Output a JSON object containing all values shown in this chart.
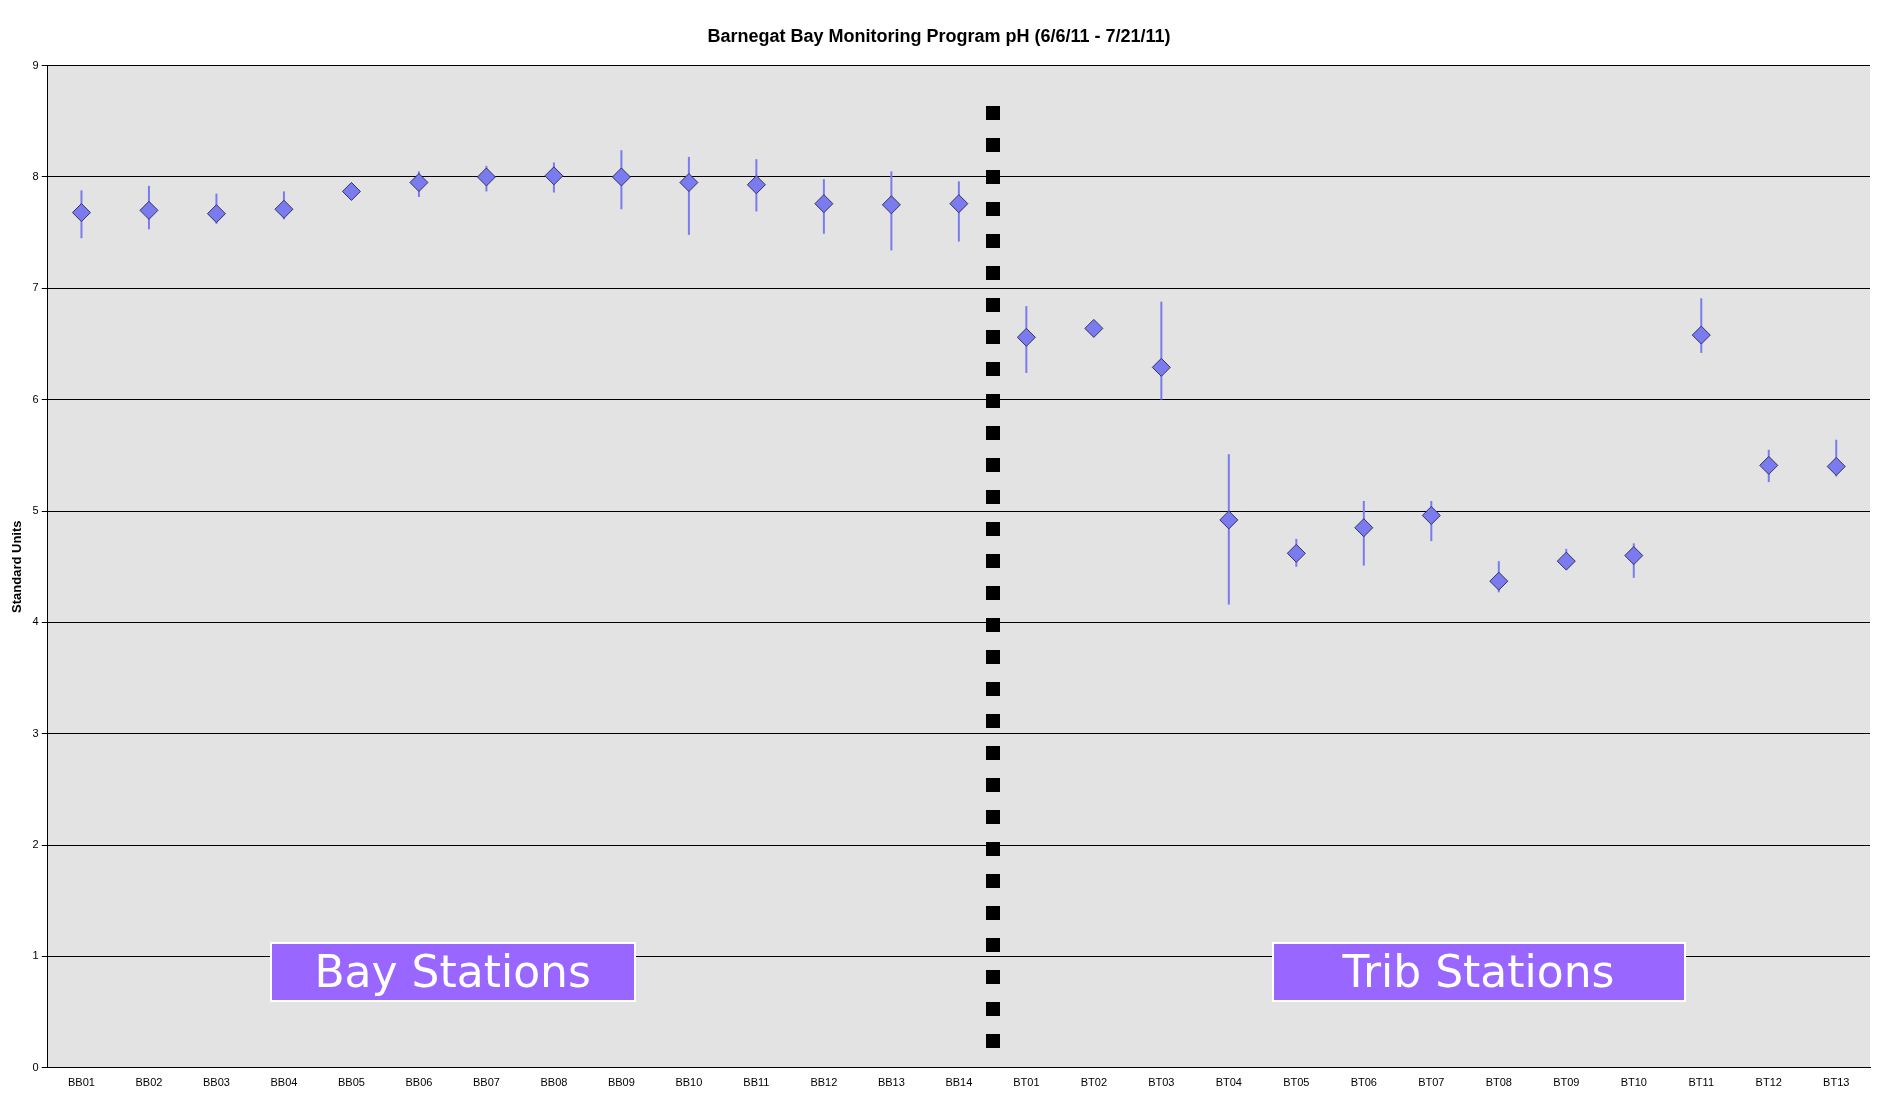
{
  "chart_data": {
    "type": "scatter",
    "title": "Barnegat Bay Monitoring Program pH (6/6/11 - 7/21/11)",
    "ylabel": "Standard Units",
    "categories": [
      "BB01",
      "BB02",
      "BB03",
      "BB04",
      "BB05",
      "BB06",
      "BB07",
      "BB08",
      "BB09",
      "BB10",
      "BB11",
      "BB12",
      "BB13",
      "BB14",
      "BT01",
      "BT02",
      "BT03",
      "BT04",
      "BT05",
      "BT06",
      "BT07",
      "BT08",
      "BT09",
      "BT10",
      "BT11",
      "BT12",
      "BT13"
    ],
    "series": [
      {
        "color": "#7b7bf0",
        "values": [
          7.68,
          7.7,
          7.67,
          7.71,
          7.87,
          7.95,
          8.0,
          8.01,
          8.0,
          7.95,
          7.93,
          7.76,
          7.75,
          7.76,
          6.56,
          6.64,
          6.29,
          4.92,
          4.62,
          4.85,
          4.96,
          4.37,
          4.55,
          4.6,
          6.58,
          5.41,
          5.4
        ],
        "errors": [
          [
            7.45,
            7.88
          ],
          [
            7.53,
            7.92
          ],
          [
            7.58,
            7.85
          ],
          [
            7.62,
            7.87
          ],
          [
            7.82,
            7.93
          ],
          [
            7.82,
            8.05
          ],
          [
            7.87,
            8.1
          ],
          [
            7.86,
            8.13
          ],
          [
            7.71,
            8.24
          ],
          [
            7.48,
            8.18
          ],
          [
            7.69,
            8.16
          ],
          [
            7.49,
            7.98
          ],
          [
            7.34,
            8.05
          ],
          [
            7.42,
            7.96
          ],
          [
            6.24,
            6.84
          ],
          null,
          [
            6.0,
            6.88
          ],
          [
            4.16,
            5.51
          ],
          [
            4.5,
            4.75
          ],
          [
            4.51,
            5.09
          ],
          [
            4.73,
            5.09
          ],
          [
            4.27,
            4.55
          ],
          [
            4.48,
            4.66
          ],
          [
            4.4,
            4.71
          ],
          [
            6.42,
            6.91
          ],
          [
            5.26,
            5.55
          ],
          [
            5.31,
            5.64
          ]
        ]
      }
    ],
    "ylim": [
      0,
      9
    ],
    "yticks": [
      0,
      1,
      2,
      3,
      4,
      5,
      6,
      7,
      8,
      9
    ],
    "grid": "y",
    "legend": false,
    "marker": "diamond",
    "annotations": [
      "Bay Stations",
      "Trib Stations"
    ]
  }
}
